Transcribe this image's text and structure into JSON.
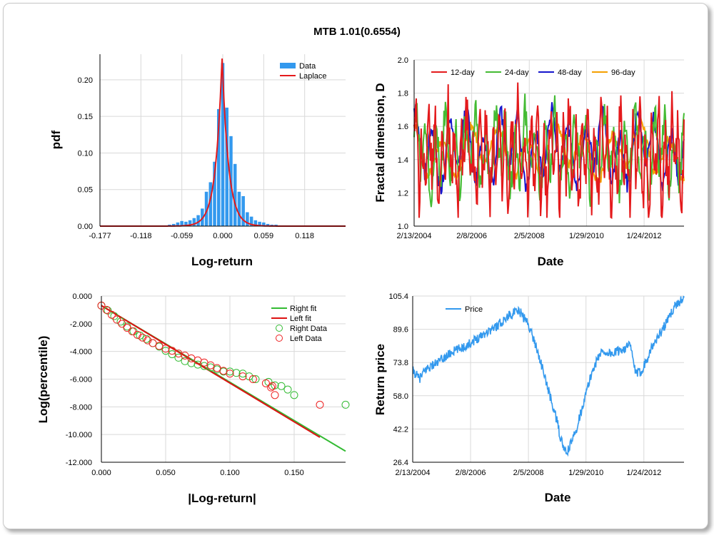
{
  "title": "MTB 1.01(0.6554)",
  "chart_data": [
    {
      "type": "bar",
      "panel": "pdf-histogram",
      "xlabel": "Log-return",
      "ylabel": "pdf",
      "xlim": [
        -0.177,
        0.177
      ],
      "ylim": [
        0,
        0.235
      ],
      "xticks": [
        "-0.177",
        "-0.118",
        "-0.059",
        "0.000",
        "0.059",
        "0.118"
      ],
      "xtick_values": [
        -0.177,
        -0.118,
        -0.059,
        0.0,
        0.059,
        0.118
      ],
      "yticks": [
        "0.00",
        "0.05",
        "0.10",
        "0.15",
        "0.20"
      ],
      "ytick_values": [
        0,
        0.05,
        0.1,
        0.15,
        0.2
      ],
      "legend": [
        "Data",
        "Laplace"
      ],
      "legend_position": "top-right",
      "colors": {
        "data": "#3399ee",
        "laplace": "#e41a1c"
      },
      "bin_width": 0.0059,
      "bins_x": [
        -0.1003,
        -0.0944,
        -0.0885,
        -0.0826,
        -0.0767,
        -0.0708,
        -0.0649,
        -0.059,
        -0.0531,
        -0.0472,
        -0.0413,
        -0.0354,
        -0.0295,
        -0.0236,
        -0.0177,
        -0.0118,
        -0.0059,
        0.0,
        0.0059,
        0.0118,
        0.0177,
        0.0236,
        0.0295,
        0.0354,
        0.0413,
        0.0472,
        0.0531,
        0.059,
        0.0649,
        0.0708,
        0.0767,
        0.0826,
        0.0885,
        0.0944,
        0.1003
      ],
      "bins_y": [
        0.0005,
        0.0005,
        0.001,
        0.001,
        0.002,
        0.003,
        0.005,
        0.007,
        0.006,
        0.008,
        0.011,
        0.015,
        0.024,
        0.047,
        0.06,
        0.088,
        0.16,
        0.223,
        0.162,
        0.123,
        0.085,
        0.047,
        0.041,
        0.019,
        0.013,
        0.008,
        0.006,
        0.005,
        0.003,
        0.002,
        0.002,
        0.001,
        0.001,
        0.0005,
        0.0005
      ],
      "laplace": {
        "mu": -0.001,
        "b": 0.0092,
        "peak": 0.232
      }
    },
    {
      "type": "line",
      "panel": "fractal-dimension",
      "xlabel": "Date",
      "ylabel": "Fractal dimension, D",
      "ylim": [
        1.0,
        2.0
      ],
      "yticks": [
        "1.0",
        "1.2",
        "1.4",
        "1.6",
        "1.8",
        "2.0"
      ],
      "ytick_values": [
        1.0,
        1.2,
        1.4,
        1.6,
        1.8,
        2.0
      ],
      "xticks": [
        "2/13/2004",
        "2/8/2006",
        "2/5/2008",
        "1/29/2010",
        "1/24/2012"
      ],
      "x_range_years": [
        2004.12,
        2013.45
      ],
      "xtick_years": [
        2004.12,
        2006.11,
        2008.1,
        2010.08,
        2012.07
      ],
      "series": [
        {
          "name": "12-day",
          "color": "#e41a1c",
          "period": 9,
          "amp": 0.2,
          "base": 1.42,
          "noise": 0.16
        },
        {
          "name": "24-day",
          "color": "#44bb33",
          "period": 14,
          "amp": 0.17,
          "base": 1.45,
          "noise": 0.1
        },
        {
          "name": "48-day",
          "color": "#1515cc",
          "period": 24,
          "amp": 0.16,
          "base": 1.46,
          "noise": 0.06
        },
        {
          "name": "96-day",
          "color": "#f5a000",
          "period": 40,
          "amp": 0.12,
          "base": 1.45,
          "noise": 0.03
        }
      ],
      "legend_position": "top"
    },
    {
      "type": "scatter",
      "panel": "log-percentile",
      "xlabel": "|Log-return|",
      "ylabel": "Log(percentile)",
      "xlim": [
        0.0,
        0.19
      ],
      "ylim": [
        -12.0,
        0.0
      ],
      "xticks": [
        "0.000",
        "0.050",
        "0.100",
        "0.150"
      ],
      "xtick_values": [
        0.0,
        0.05,
        0.1,
        0.15
      ],
      "yticks": [
        "0.000",
        "-2.000",
        "-4.000",
        "-6.000",
        "-8.000",
        "-10.000",
        "-12.000"
      ],
      "ytick_values": [
        0,
        -2,
        -4,
        -6,
        -8,
        -10,
        -12
      ],
      "legend": [
        "Right fit",
        "Left fit",
        "Right Data",
        "Left Data"
      ],
      "legend_position": "top-right",
      "right_fit": {
        "x": [
          0.0,
          0.19
        ],
        "y": [
          -0.69,
          -11.2
        ],
        "color": "#33bb33"
      },
      "left_fit": {
        "x": [
          0.0,
          0.17
        ],
        "y": [
          -0.69,
          -10.2
        ],
        "color": "#dd1111"
      },
      "right_data": {
        "color": "#33bb33",
        "x": [
          0.0,
          0.005,
          0.01,
          0.015,
          0.02,
          0.025,
          0.03,
          0.035,
          0.04,
          0.045,
          0.05,
          0.055,
          0.06,
          0.065,
          0.07,
          0.075,
          0.08,
          0.085,
          0.09,
          0.095,
          0.1,
          0.105,
          0.11,
          0.115,
          0.12,
          0.13,
          0.135,
          0.14,
          0.145,
          0.15,
          0.19
        ],
        "y": [
          -0.69,
          -1.05,
          -1.45,
          -1.85,
          -2.2,
          -2.55,
          -2.85,
          -3.1,
          -3.4,
          -3.65,
          -3.95,
          -4.2,
          -4.45,
          -4.7,
          -4.85,
          -4.95,
          -5.05,
          -5.15,
          -5.3,
          -5.45,
          -5.45,
          -5.55,
          -5.6,
          -5.8,
          -6.0,
          -6.2,
          -6.45,
          -6.5,
          -6.75,
          -7.15,
          -7.85
        ]
      },
      "left_data": {
        "color": "#ee2222",
        "x": [
          0.0,
          0.004,
          0.008,
          0.012,
          0.016,
          0.02,
          0.024,
          0.028,
          0.032,
          0.036,
          0.04,
          0.045,
          0.05,
          0.055,
          0.06,
          0.065,
          0.07,
          0.075,
          0.08,
          0.085,
          0.09,
          0.095,
          0.1,
          0.11,
          0.118,
          0.128,
          0.132,
          0.133,
          0.135,
          0.17
        ],
        "y": [
          -0.69,
          -1.0,
          -1.35,
          -1.7,
          -2.0,
          -2.3,
          -2.55,
          -2.8,
          -3.0,
          -3.2,
          -3.4,
          -3.6,
          -3.8,
          -3.95,
          -4.15,
          -4.3,
          -4.5,
          -4.65,
          -4.8,
          -5.0,
          -5.2,
          -5.4,
          -5.6,
          -5.8,
          -6.0,
          -6.3,
          -6.6,
          -6.5,
          -7.15,
          -7.85
        ]
      }
    },
    {
      "type": "line",
      "panel": "return-price",
      "xlabel": "Date",
      "ylabel": "Return price",
      "ylim": [
        26.4,
        105.4
      ],
      "yticks": [
        "105.4",
        "89.6",
        "73.8",
        "58.0",
        "42.2",
        "26.4"
      ],
      "ytick_values": [
        105.4,
        89.6,
        73.8,
        58.0,
        42.2,
        26.4
      ],
      "xticks": [
        "2/13/2004",
        "2/8/2006",
        "2/5/2008",
        "1/29/2010",
        "1/24/2012"
      ],
      "x_range_years": [
        2004.12,
        2013.45
      ],
      "xtick_years": [
        2004.12,
        2006.11,
        2008.1,
        2010.08,
        2012.07
      ],
      "legend": [
        "Price"
      ],
      "legend_position": "top-left",
      "color": "#3399ee",
      "anchors_x": [
        2004.12,
        2004.35,
        2004.6,
        2005.0,
        2005.5,
        2006.0,
        2006.5,
        2007.0,
        2007.5,
        2007.8,
        2008.1,
        2008.4,
        2008.7,
        2008.9,
        2009.1,
        2009.2,
        2009.4,
        2009.7,
        2010.0,
        2010.3,
        2010.6,
        2011.0,
        2011.3,
        2011.6,
        2011.8,
        2012.0,
        2012.3,
        2012.6,
        2012.9,
        2013.1,
        2013.45
      ],
      "anchors_y": [
        70,
        66,
        71,
        74,
        79,
        82,
        87,
        91,
        97,
        98,
        92,
        80,
        65,
        55,
        45,
        38,
        30,
        40,
        55,
        70,
        79,
        78,
        80,
        82,
        68,
        70,
        80,
        87,
        94,
        100,
        105
      ]
    }
  ]
}
